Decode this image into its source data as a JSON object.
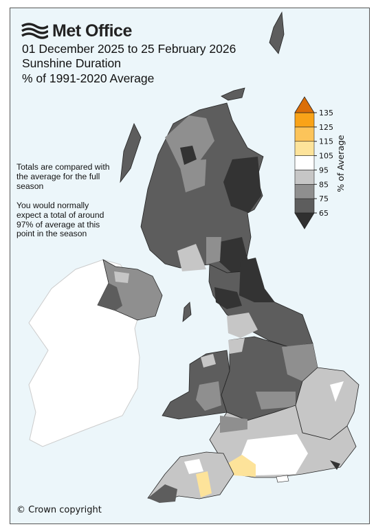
{
  "header": {
    "logo_text": "Met Office",
    "title_lines": [
      "01 December 2025 to 25 February 2026",
      "Sunshine Duration",
      "% of 1991-2020 Average"
    ]
  },
  "notes": {
    "line1": "Totals are compared with the average for the full season",
    "line2": "You would normally expect a total of around 97% of average at this point in the season"
  },
  "copyright": "© Crown copyright",
  "colorbar": {
    "label": "% of Average",
    "ticks": [
      65,
      75,
      85,
      95,
      105,
      115,
      125,
      135
    ],
    "bins": [
      {
        "from": 65,
        "to": 75,
        "color": "#5d5d5d"
      },
      {
        "from": 75,
        "to": 85,
        "color": "#8f8f8f"
      },
      {
        "from": 85,
        "to": 95,
        "color": "#c6c6c6"
      },
      {
        "from": 95,
        "to": 105,
        "color": "#ffffff"
      },
      {
        "from": 105,
        "to": 115,
        "color": "#fde39a"
      },
      {
        "from": 115,
        "to": 125,
        "color": "#fcc45a"
      },
      {
        "from": 125,
        "to": 135,
        "color": "#f9a318"
      }
    ],
    "under_color": "#303030",
    "over_color": "#db6e08"
  },
  "map_colors": {
    "sea": "#ecf6fa",
    "ireland": "#ffffff",
    "border": "#222222",
    "darkest": "#333333",
    "dark": "#5d5d5d",
    "mid": "#8f8f8f",
    "light": "#c6c6c6",
    "white": "#ffffff",
    "yellow": "#fde39a"
  }
}
